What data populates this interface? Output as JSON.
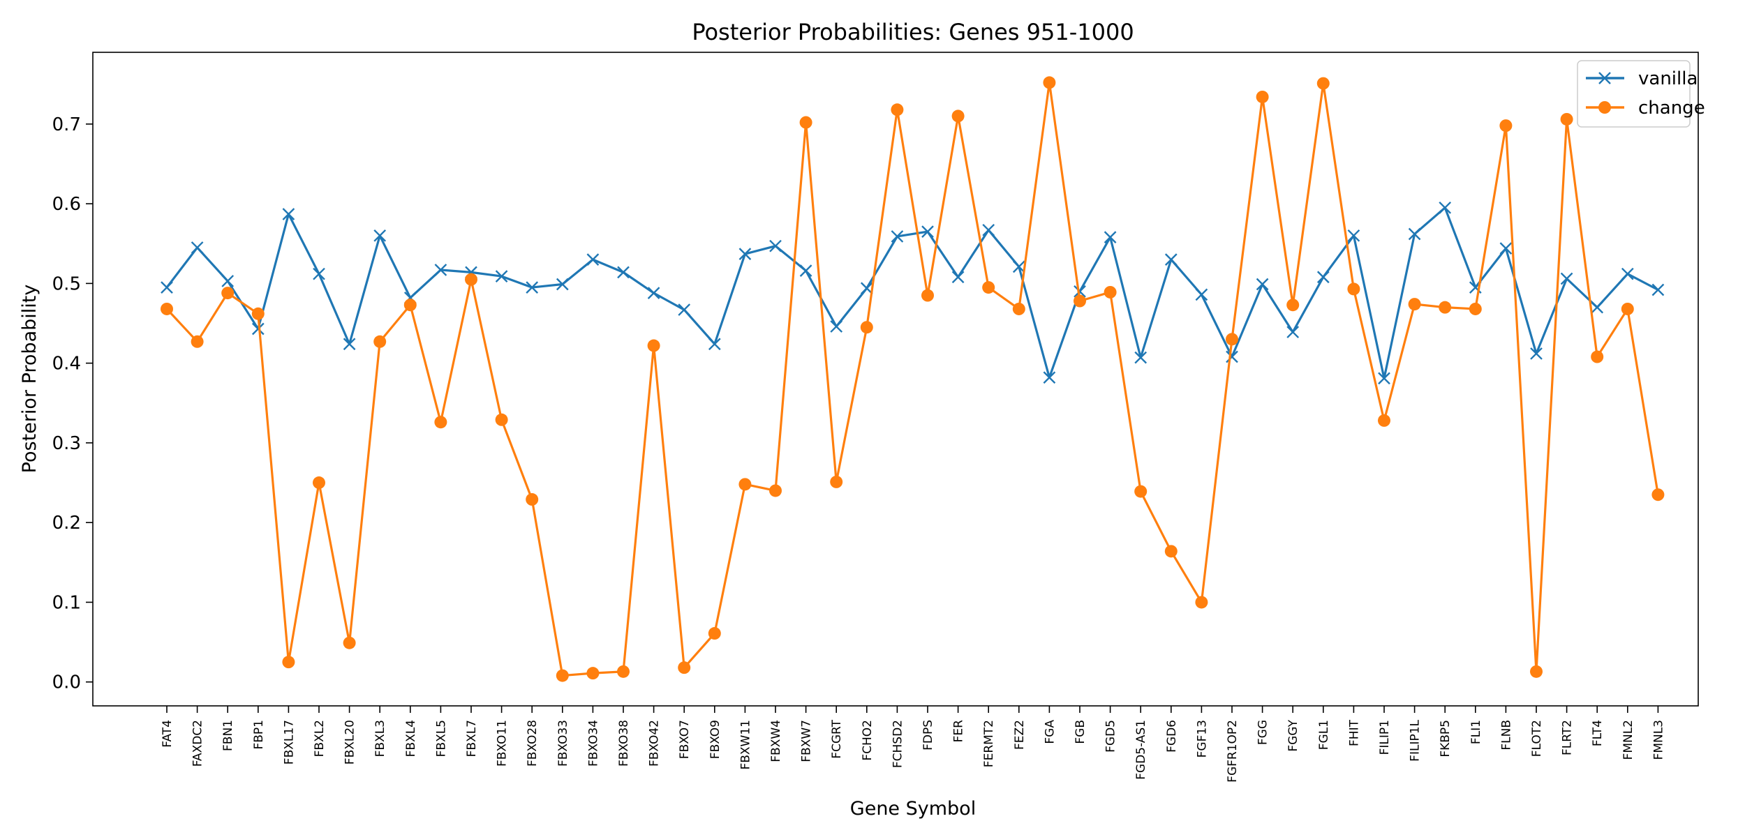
{
  "chart_data": {
    "type": "line",
    "title": "Posterior Probabilities: Genes 951-1000",
    "xlabel": "Gene Symbol",
    "ylabel": "Posterior Probability",
    "ylim": [
      -0.03,
      0.79
    ],
    "yticks": [
      0.0,
      0.1,
      0.2,
      0.3,
      0.4,
      0.5,
      0.6,
      0.7
    ],
    "ytick_labels": [
      "0.0",
      "0.1",
      "0.2",
      "0.3",
      "0.4",
      "0.5",
      "0.6",
      "0.7"
    ],
    "grid": false,
    "legend_position": "top-right",
    "categories": [
      "FAT4",
      "FAXDC2",
      "FBN1",
      "FBP1",
      "FBXL17",
      "FBXL2",
      "FBXL20",
      "FBXL3",
      "FBXL4",
      "FBXL5",
      "FBXL7",
      "FBXO11",
      "FBXO28",
      "FBXO33",
      "FBXO34",
      "FBXO38",
      "FBXO42",
      "FBXO7",
      "FBXO9",
      "FBXW11",
      "FBXW4",
      "FBXW7",
      "FCGRT",
      "FCHO2",
      "FCHSD2",
      "FDPS",
      "FER",
      "FERMT2",
      "FEZ2",
      "FGA",
      "FGB",
      "FGD5",
      "FGD5-AS1",
      "FGD6",
      "FGF13",
      "FGFR1OP2",
      "FGG",
      "FGGY",
      "FGL1",
      "FHIT",
      "FILIP1",
      "FILIP1L",
      "FKBP5",
      "FLI1",
      "FLNB",
      "FLOT2",
      "FLRT2",
      "FLT4",
      "FMNL2",
      "FMNL3"
    ],
    "series": [
      {
        "name": "vanilla",
        "color": "#1f77b4",
        "marker": "x",
        "values": [
          0.495,
          0.545,
          0.503,
          0.443,
          0.587,
          0.512,
          0.424,
          0.56,
          0.482,
          0.517,
          0.514,
          0.509,
          0.495,
          0.499,
          0.53,
          0.514,
          0.488,
          0.467,
          0.424,
          0.537,
          0.547,
          0.516,
          0.446,
          0.494,
          0.559,
          0.565,
          0.508,
          0.567,
          0.521,
          0.382,
          0.49,
          0.558,
          0.407,
          0.53,
          0.486,
          0.408,
          0.499,
          0.439,
          0.508,
          0.56,
          0.381,
          0.562,
          0.595,
          0.495,
          0.544,
          0.412,
          0.506,
          0.47,
          0.512,
          0.492
        ]
      },
      {
        "name": "change",
        "color": "#ff7f0e",
        "marker": "o",
        "values": [
          0.468,
          0.427,
          0.488,
          0.462,
          0.025,
          0.25,
          0.049,
          0.427,
          0.473,
          0.326,
          0.505,
          0.329,
          0.229,
          0.008,
          0.011,
          0.013,
          0.422,
          0.018,
          0.061,
          0.248,
          0.24,
          0.702,
          0.251,
          0.445,
          0.718,
          0.485,
          0.71,
          0.495,
          0.468,
          0.752,
          0.478,
          0.489,
          0.239,
          0.164,
          0.1,
          0.43,
          0.734,
          0.473,
          0.751,
          0.493,
          0.328,
          0.474,
          0.47,
          0.468,
          0.698,
          0.013,
          0.706,
          0.408,
          0.468,
          0.235
        ]
      }
    ]
  }
}
